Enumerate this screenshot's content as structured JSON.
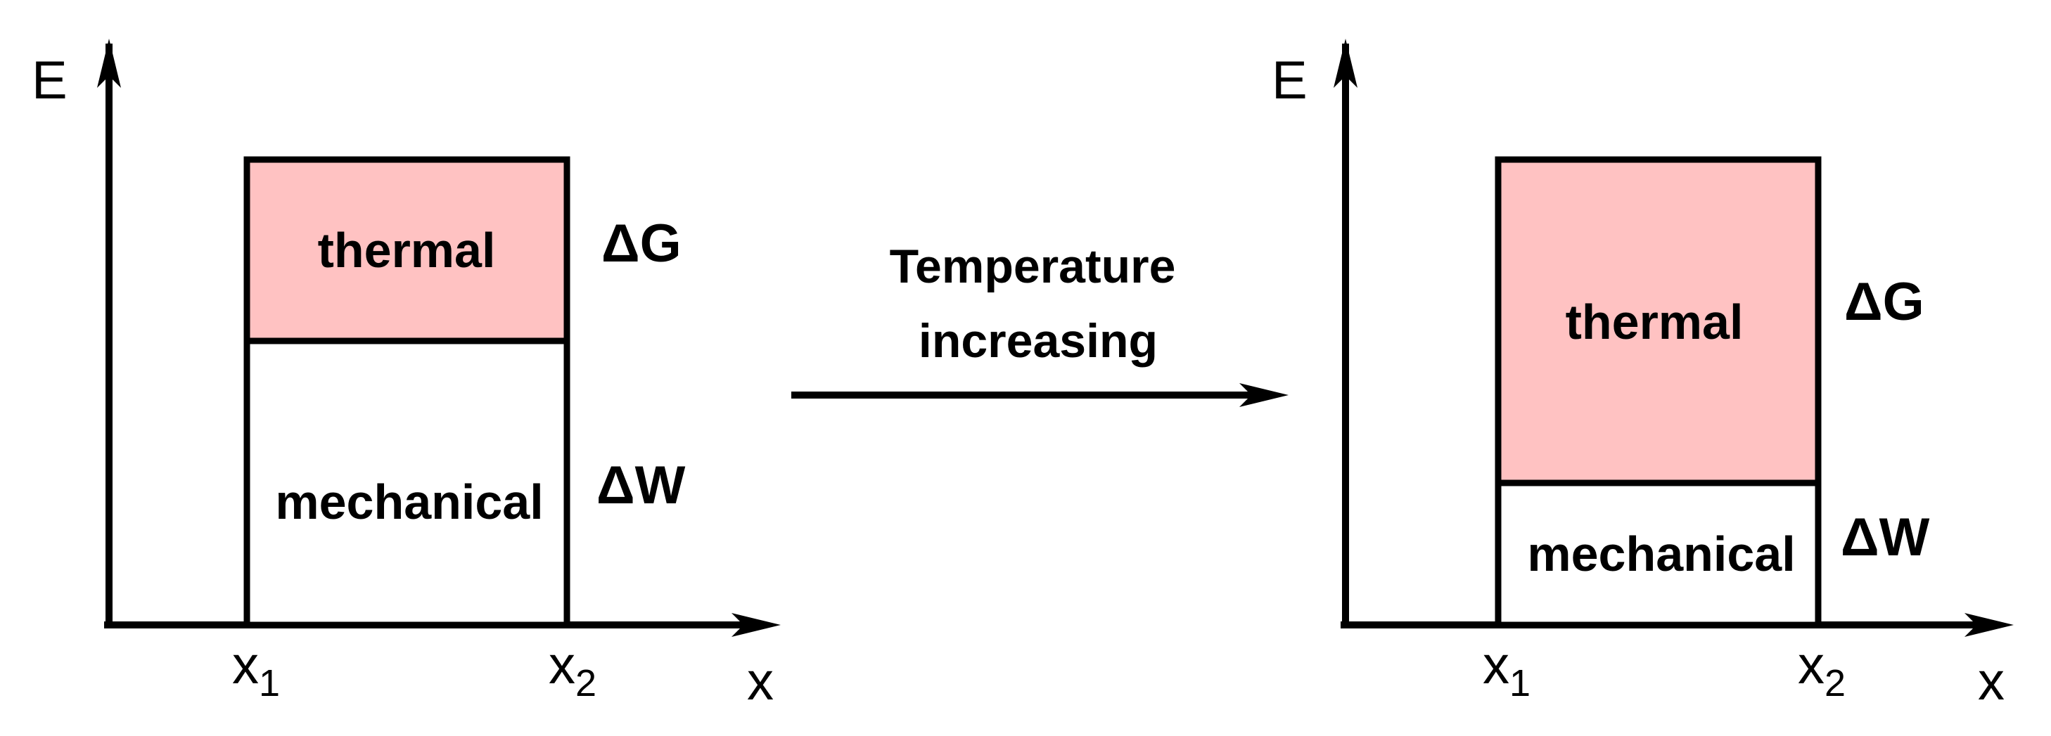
{
  "colors": {
    "thermal_fill": "#ffc2c2",
    "line": "#000000",
    "background": "#ffffff"
  },
  "arrow": {
    "line1": "Temperature",
    "line2": "increasing"
  },
  "panels": [
    {
      "y_axis_label": "E",
      "x_axis_label": "x",
      "x1": {
        "base": "x",
        "sub": "1"
      },
      "x2": {
        "base": "x",
        "sub": "2"
      },
      "thermal": {
        "label": "thermal",
        "energy_label": "ΔG",
        "share": 0.36
      },
      "mechanical": {
        "label": "mechanical",
        "energy_label": "ΔW",
        "share": 0.64
      }
    },
    {
      "y_axis_label": "E",
      "x_axis_label": "x",
      "x1": {
        "base": "x",
        "sub": "1"
      },
      "x2": {
        "base": "x",
        "sub": "2"
      },
      "thermal": {
        "label": "thermal",
        "energy_label": "ΔG",
        "share": 0.69
      },
      "mechanical": {
        "label": "mechanical",
        "energy_label": "ΔW",
        "share": 0.31
      }
    }
  ]
}
